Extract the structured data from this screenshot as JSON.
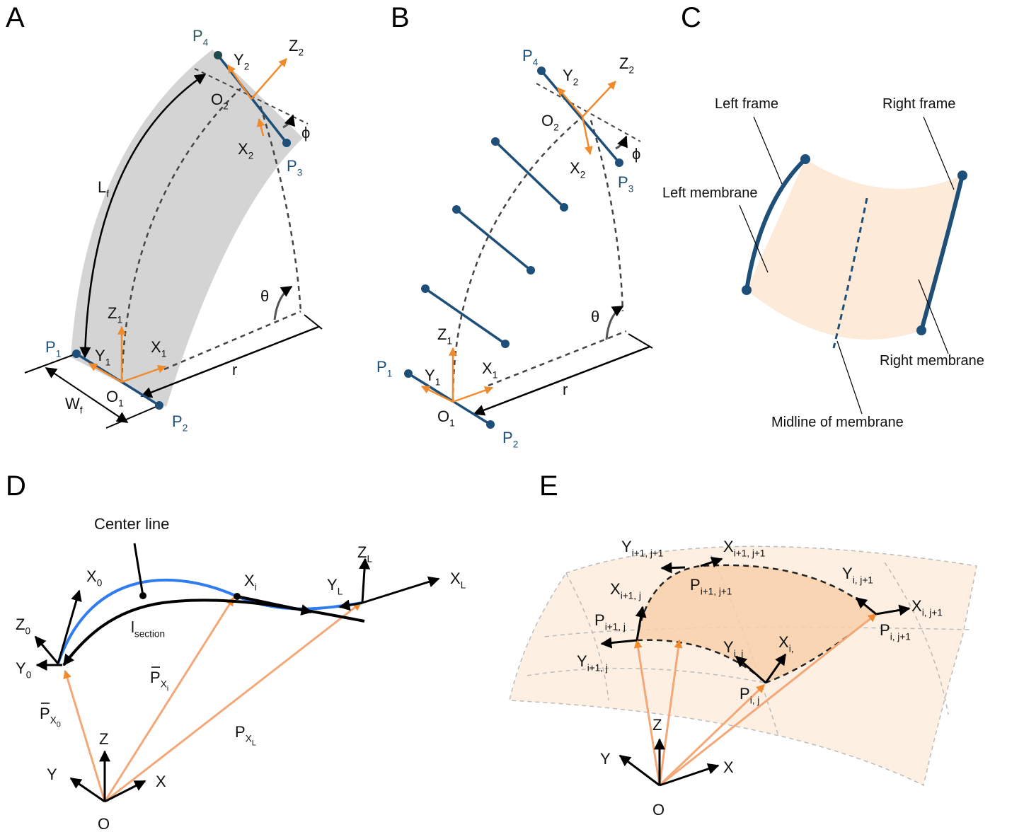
{
  "panel_letters": [
    "A",
    "B",
    "C",
    "D",
    "E"
  ],
  "panel_a": {
    "labels": [
      {
        "text": "P",
        "sub": "4"
      },
      {
        "text": "Y",
        "sub": "2"
      },
      {
        "text": "Z",
        "sub": "2"
      },
      {
        "text": "O",
        "sub": "2"
      },
      {
        "text": "ϕ"
      },
      {
        "text": "X",
        "sub": "2"
      },
      {
        "text": "P",
        "sub": "3"
      },
      {
        "text": "L",
        "sub": "f"
      },
      {
        "text": "θ"
      },
      {
        "text": "Z",
        "sub": "1"
      },
      {
        "text": "P",
        "sub": "1"
      },
      {
        "text": "Y",
        "sub": "1"
      },
      {
        "text": "X",
        "sub": "1"
      },
      {
        "text": "r"
      },
      {
        "text": "O",
        "sub": "1"
      },
      {
        "text": "W",
        "sub": "f"
      },
      {
        "text": "P",
        "sub": "2"
      }
    ]
  },
  "panel_b": {
    "labels": [
      {
        "text": "P",
        "sub": "4"
      },
      {
        "text": "Y",
        "sub": "2"
      },
      {
        "text": "Z",
        "sub": "2"
      },
      {
        "text": "O",
        "sub": "2"
      },
      {
        "text": "ϕ"
      },
      {
        "text": "X",
        "sub": "2"
      },
      {
        "text": "P",
        "sub": "3"
      },
      {
        "text": "θ"
      },
      {
        "text": "Z",
        "sub": "1"
      },
      {
        "text": "P",
        "sub": "1"
      },
      {
        "text": "Y",
        "sub": "1"
      },
      {
        "text": "X",
        "sub": "1"
      },
      {
        "text": "r"
      },
      {
        "text": "O",
        "sub": "1"
      },
      {
        "text": "P",
        "sub": "2"
      }
    ]
  },
  "panel_c": {
    "labels": [
      {
        "text": "Left frame"
      },
      {
        "text": "Right frame"
      },
      {
        "text": "Left membrane"
      },
      {
        "text": "Right membrane"
      },
      {
        "text": "Midline of membrane"
      }
    ]
  },
  "panel_d": {
    "labels": [
      {
        "text": "Center line"
      },
      {
        "text": "X",
        "sub": "0"
      },
      {
        "text": "Z",
        "sub": "0"
      },
      {
        "text": "Y",
        "sub": "0"
      },
      {
        "text": "X",
        "sub": "i"
      },
      {
        "text": "Z",
        "sub": "L"
      },
      {
        "text": "Y",
        "sub": "L"
      },
      {
        "text": "X",
        "sub": "L"
      },
      {
        "text": "l",
        "sub": "section"
      },
      {
        "text": "P",
        "sub": "X",
        "subsub": "i"
      },
      {
        "text": "P",
        "sub": "X",
        "subsub": "0"
      },
      {
        "text": "P",
        "sub": "X",
        "subsub": "L"
      },
      {
        "text": "Z"
      },
      {
        "text": "Y"
      },
      {
        "text": "X"
      },
      {
        "text": "O"
      }
    ]
  },
  "panel_e": {
    "labels": [
      {
        "text": "Y",
        "sub": "i+1, j+1"
      },
      {
        "text": "X",
        "sub": "i+1, j+1"
      },
      {
        "text": "X",
        "sub": "i+1, j"
      },
      {
        "text": "Y",
        "sub": "i, j+1"
      },
      {
        "text": "P",
        "sub": "i+1, j+1"
      },
      {
        "text": "P",
        "sub": "i+1, j"
      },
      {
        "text": "X",
        "sub": "i, j+1"
      },
      {
        "text": "P",
        "sub": "i, j+1"
      },
      {
        "text": "Y",
        "sub": "i+1, j"
      },
      {
        "text": "Y",
        "sub": "i, j"
      },
      {
        "text": "X",
        "sub": "i,"
      },
      {
        "text": "P",
        "sub": "i, j"
      },
      {
        "text": "Z"
      },
      {
        "text": "Y"
      },
      {
        "text": "X"
      },
      {
        "text": "O"
      }
    ]
  }
}
